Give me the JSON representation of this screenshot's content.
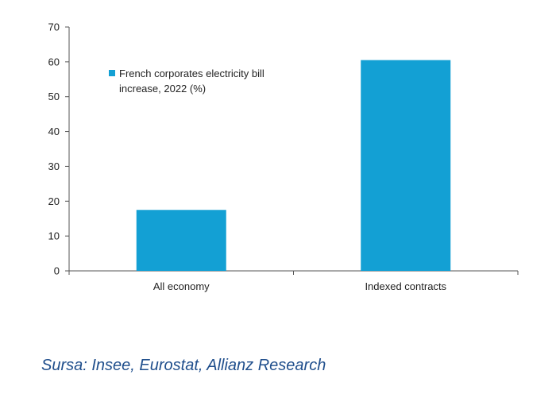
{
  "chart_data": {
    "type": "bar",
    "categories": [
      "All economy",
      "Indexed contracts"
    ],
    "series": [
      {
        "name": "French corporates electricity bill increase, 2022 (%)",
        "values": [
          17.5,
          60.5
        ]
      }
    ],
    "ylim": [
      0,
      70
    ],
    "yticks": [
      0,
      10,
      20,
      30,
      40,
      50,
      60,
      70
    ],
    "grid": false,
    "legend_position": "top-left",
    "legend_lines": [
      "French corporates electricity bill",
      "increase, 2022 (%)"
    ],
    "bar_color": "#13a0d4",
    "axis_color": "#555555"
  },
  "source_note": "Sursa: Insee, Eurostat, Allianz Research"
}
